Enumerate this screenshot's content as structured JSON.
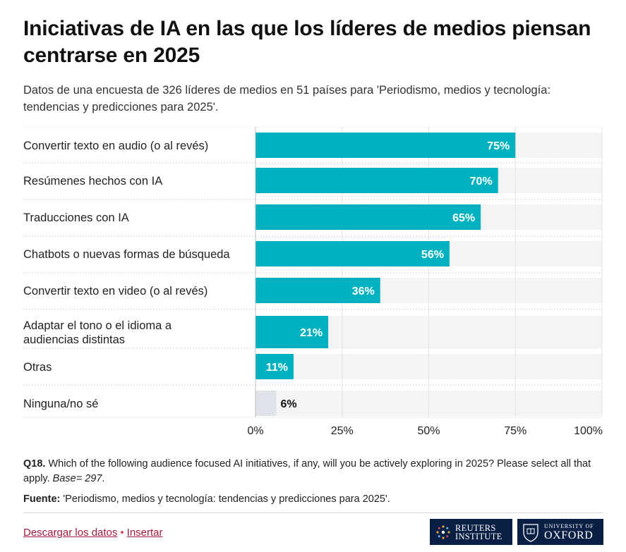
{
  "title": "Iniciativas de IA en las que los líderes de medios piensan centrarse en 2025",
  "subtitle": "Datos de una encuesta de 326 líderes de medios en 51 países para 'Periodismo, medios y tecnología: tendencias y predicciones para 2025'.",
  "chart_data": {
    "type": "bar",
    "orientation": "horizontal",
    "categories": [
      "Convertir texto en audio (o al revés)",
      "Resúmenes hechos con IA",
      "Traducciones con IA",
      "Chatbots o nuevas formas de búsqueda",
      "Convertir texto en video (o al revés)",
      "Adaptar el tono o el idioma a audiencias distintas",
      "Otras",
      "Ninguna/no sé"
    ],
    "values": [
      75,
      70,
      65,
      56,
      36,
      21,
      11,
      6
    ],
    "value_labels": [
      "75%",
      "70%",
      "65%",
      "56%",
      "36%",
      "21%",
      "11%",
      "6%"
    ],
    "xlim": [
      0,
      100
    ],
    "ticks": [
      0,
      25,
      50,
      75,
      100
    ],
    "tick_labels": [
      "0%",
      "25%",
      "50%",
      "75%",
      "100%"
    ],
    "colors": {
      "bar": "#00b1bf",
      "bar_muted": "#dfe2e8",
      "background_track": "#f4f4f4",
      "label_inside": "#ffffff",
      "label_outside": "#111111"
    },
    "grid": true,
    "legend": "none"
  },
  "footnotes": {
    "question_label": "Q18.",
    "question_text": "Which of the following audience focused AI initiatives, if any, will you be actively exploring in 2025? Please select all that apply.",
    "base_text": "Base= 297",
    "source_label": "Fuente:",
    "source_text": "'Periodismo, medios y tecnología: tendencias y predicciones para 2025'."
  },
  "links": {
    "download": "Descargar los datos",
    "separator": "•",
    "embed": "Insertar"
  },
  "logos": {
    "reuters_line1": "REUTERS",
    "reuters_line2": "INSTITUTE",
    "oxford_line1": "UNIVERSITY OF",
    "oxford_line2": "OXFORD"
  }
}
